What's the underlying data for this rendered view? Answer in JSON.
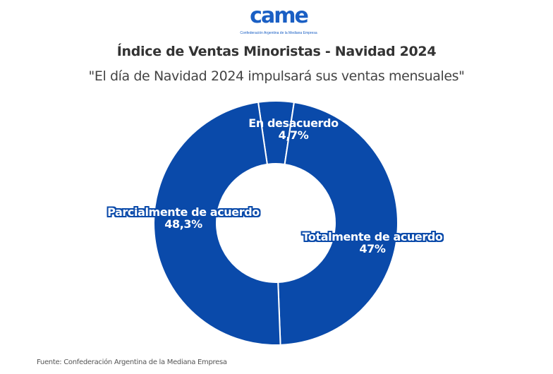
{
  "logo": {
    "text": "came",
    "subtitle": "Confederación Argentina de la Mediana Empresa"
  },
  "title": "Índice de Ventas Minoristas - Navidad 2024",
  "subtitle": "\"El día de Navidad 2024 impulsará sus ventas mensuales\"",
  "source": "Fuente: Confederación Argentina de la Mediana Empresa",
  "colors": {
    "slice": "#0a4aaa",
    "title": "#333333",
    "background": "#ffffff"
  },
  "labels": {
    "desacuerdo": {
      "name": "En desacuerdo",
      "value": "4,7%"
    },
    "parcial": {
      "name": "Parcialmente de acuerdo",
      "value": "48,3%"
    },
    "total": {
      "name": "Totalmente de acuerdo",
      "value": "47%"
    }
  },
  "chart_data": {
    "type": "pie",
    "subtype": "donut",
    "title": "Índice de Ventas Minoristas - Navidad 2024",
    "subtitle": "\"El día de Navidad 2024 impulsará sus ventas mensuales\"",
    "categories": [
      "En desacuerdo",
      "Totalmente de acuerdo",
      "Parcialmente de acuerdo"
    ],
    "values": [
      4.7,
      47,
      48.3
    ],
    "unit": "%",
    "colors": [
      "#0a4aaa",
      "#0a4aaa",
      "#0a4aaa"
    ],
    "legend": "none (direct labels)",
    "source": "Fuente: Confederación Argentina de la Mediana Empresa"
  }
}
